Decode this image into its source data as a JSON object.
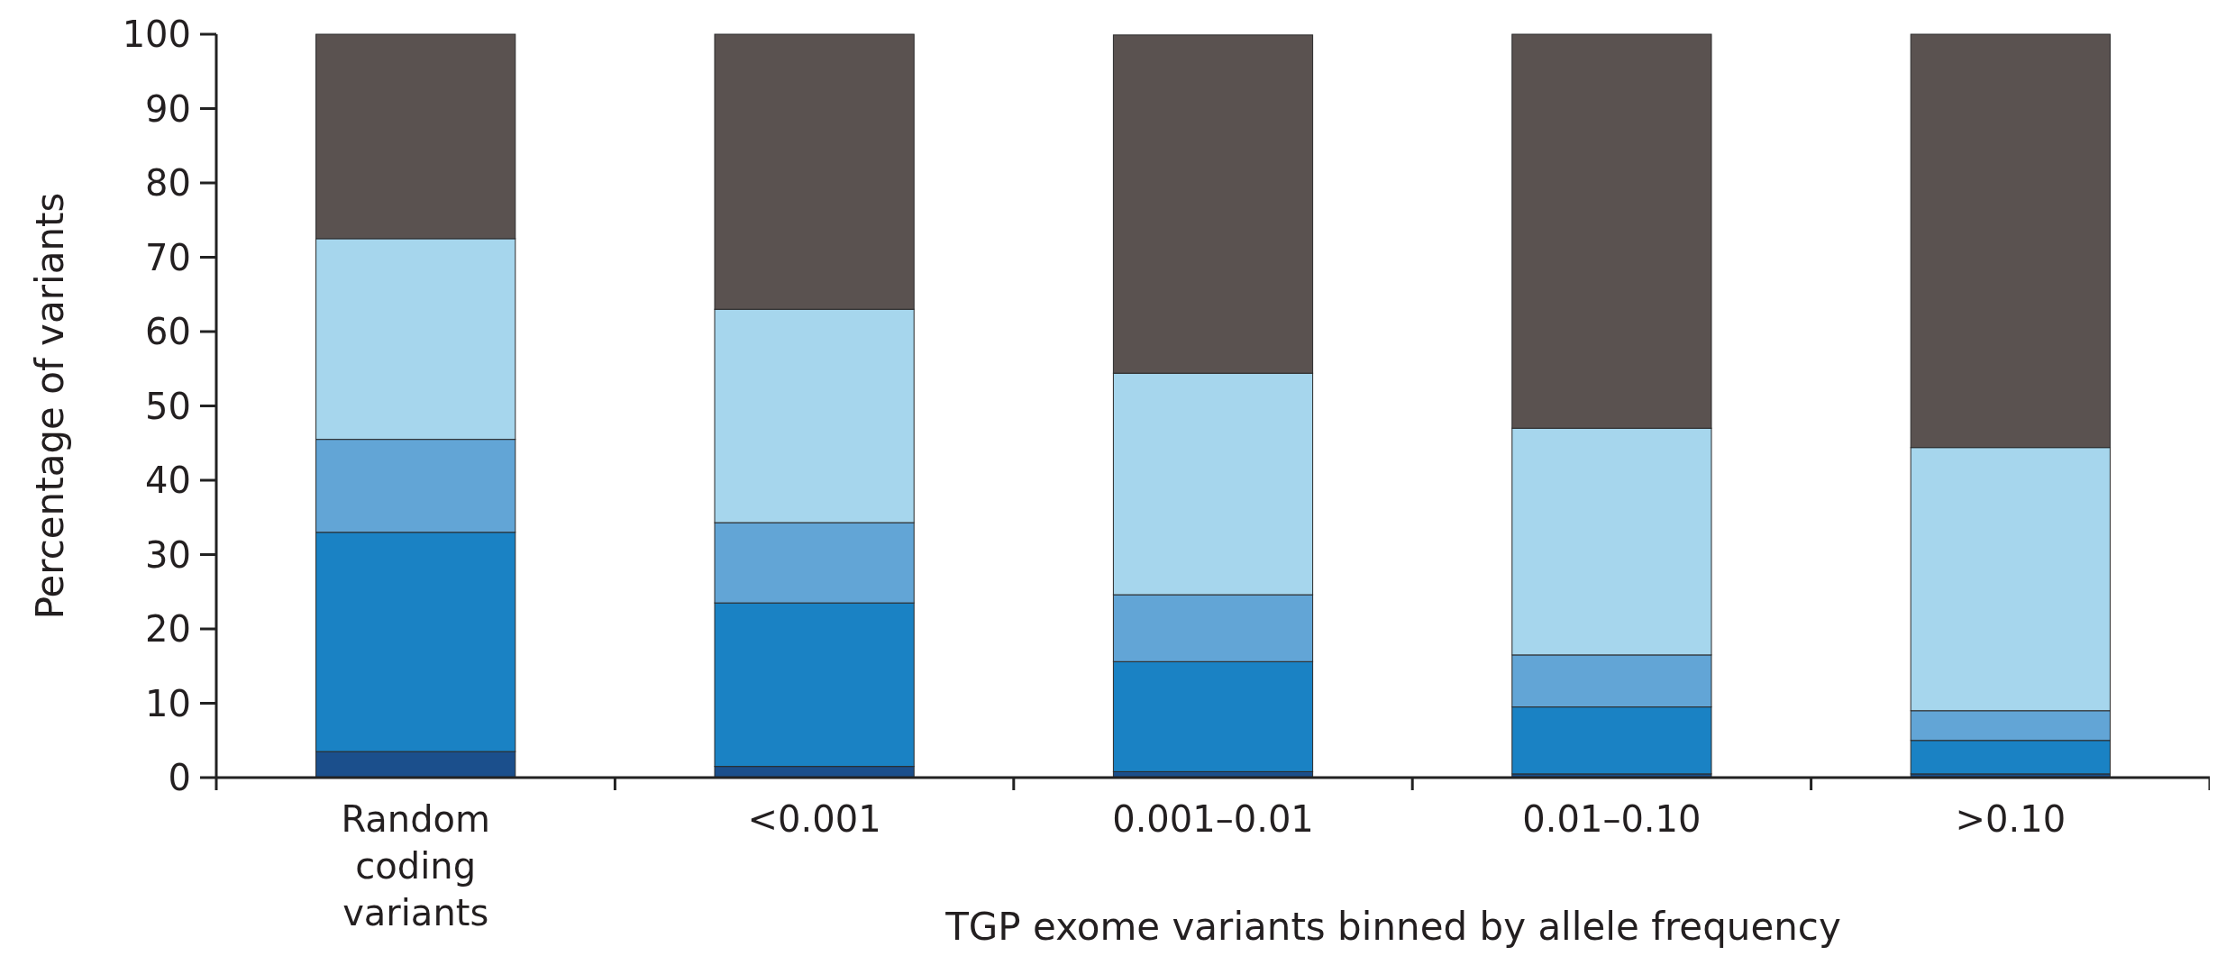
{
  "chart_data": {
    "type": "bar",
    "stacked": true,
    "xlabel": "TGP exome variants binned by allele frequency",
    "ylabel": "Percentage of variants",
    "categories": [
      "Random coding variants",
      "<0.001",
      "0.001–0.01",
      "0.01–0.10",
      ">0.10"
    ],
    "series": [
      {
        "color": "#1b4f8c",
        "values": [
          3.5,
          1.5,
          0.8,
          0.5,
          0.5
        ]
      },
      {
        "color": "#1a82c4",
        "values": [
          29.5,
          22,
          14.8,
          9,
          4.5
        ]
      },
      {
        "color": "#62a5d6",
        "values": [
          12.5,
          10.8,
          9,
          7,
          4
        ]
      },
      {
        "color": "#a6d6ed",
        "values": [
          27,
          28.7,
          29.8,
          30.5,
          35.4
        ]
      },
      {
        "color": "#5a5250",
        "values": [
          27.5,
          37,
          45.5,
          53,
          55.6
        ]
      }
    ],
    "ylim": [
      0,
      100
    ],
    "yticks": [
      0,
      10,
      20,
      30,
      40,
      50,
      60,
      70,
      80,
      90,
      100
    ],
    "grid": false
  }
}
